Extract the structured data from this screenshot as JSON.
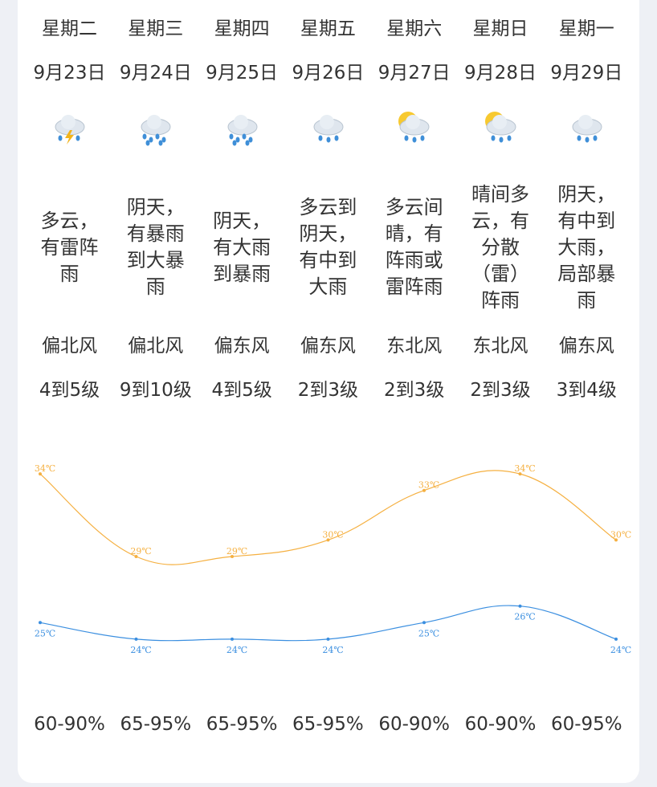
{
  "days": [
    {
      "weekday": "星期二",
      "date": "9月23日",
      "weather": "多云，有雷阵雨",
      "wind_dir": "偏北风",
      "wind_level": "4到5级",
      "humidity": "60-90%"
    },
    {
      "weekday": "星期三",
      "date": "9月24日",
      "weather": "阴天，有暴雨到大暴雨",
      "wind_dir": "偏北风",
      "wind_level": "9到10级",
      "humidity": "65-95%"
    },
    {
      "weekday": "星期四",
      "date": "9月25日",
      "weather": "阴天，有大雨到暴雨",
      "wind_dir": "偏东风",
      "wind_level": "4到5级",
      "humidity": "65-95%"
    },
    {
      "weekday": "星期五",
      "date": "9月26日",
      "weather": "多云到阴天，有中到大雨",
      "wind_dir": "偏东风",
      "wind_level": "2到3级",
      "humidity": "65-95%"
    },
    {
      "weekday": "星期六",
      "date": "9月27日",
      "weather": "多云间晴，有阵雨或雷阵雨",
      "wind_dir": "东北风",
      "wind_level": "2到3级",
      "humidity": "60-90%"
    },
    {
      "weekday": "星期日",
      "date": "9月28日",
      "weather": "晴间多云，有分散（雷）阵雨",
      "wind_dir": "东北风",
      "wind_level": "2到3级",
      "humidity": "60-90%"
    },
    {
      "weekday": "星期一",
      "date": "9月29日",
      "weather": "阴天，有中到大雨，局部暴雨",
      "wind_dir": "偏东风",
      "wind_level": "3到4级",
      "humidity": "60-95%"
    }
  ],
  "chart_data": {
    "type": "line",
    "ylim": [
      22,
      36
    ],
    "series": [
      {
        "color": "#f5b041",
        "values": [
          34,
          29,
          29,
          30,
          33,
          34,
          30
        ],
        "value_labels": [
          "34℃",
          "29℃",
          "29℃",
          "30℃",
          "33℃",
          "34℃",
          "30℃"
        ]
      },
      {
        "color": "#3b8fe0",
        "values": [
          25,
          24,
          24,
          24,
          25,
          26,
          24
        ],
        "value_labels": [
          "25℃",
          "24℃",
          "24℃",
          "24℃",
          "25℃",
          "26℃",
          "24℃"
        ]
      }
    ]
  }
}
